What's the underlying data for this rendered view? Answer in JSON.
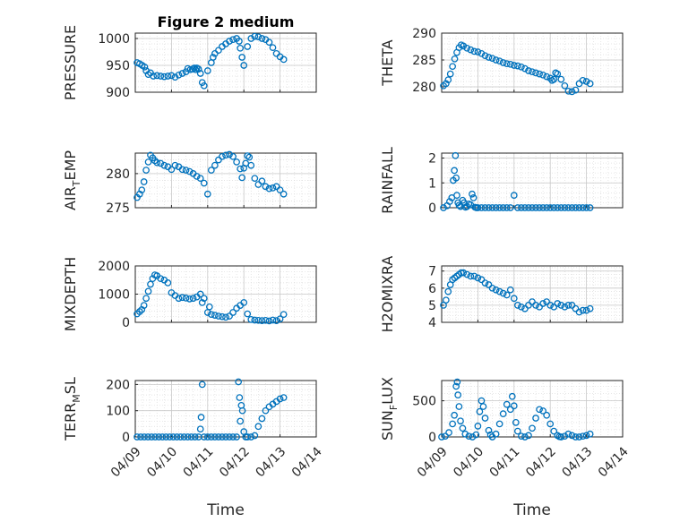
{
  "chart_data": {
    "type": "scatter",
    "title": "Figure 2 medium",
    "x_label": "Time",
    "x_tick_labels": [
      "04/09",
      "04/10",
      "04/11",
      "04/12",
      "04/13",
      "04/14"
    ],
    "xlim": [
      0,
      5
    ],
    "marker_color": "#0072BD",
    "grid": true,
    "minor_grid": true,
    "panels": [
      {
        "id": "pressure",
        "ylabel": "PRESSURE",
        "ylabel_sub": "",
        "ylabel_tail": "",
        "ylim": [
          900,
          1010
        ],
        "yticks": [
          900,
          950,
          1000
        ],
        "ytick_labels": [
          "900",
          "950",
          "1000"
        ],
        "x": [
          0.05,
          0.12,
          0.19,
          0.26,
          0.3,
          0.36,
          0.42,
          0.5,
          0.6,
          0.7,
          0.8,
          0.9,
          1.0,
          1.1,
          1.2,
          1.3,
          1.4,
          1.45,
          1.52,
          1.58,
          1.63,
          1.67,
          1.7,
          1.75,
          1.8,
          1.85,
          1.9,
          2.0,
          2.1,
          2.15,
          2.2,
          2.3,
          2.4,
          2.5,
          2.6,
          2.7,
          2.8,
          2.87,
          2.9,
          2.95,
          3.0,
          3.1,
          3.2,
          3.3,
          3.4,
          3.5,
          3.6,
          3.7,
          3.8,
          3.9,
          4.0,
          4.1
        ],
        "y": [
          955,
          953,
          950,
          947,
          940,
          933,
          936,
          930,
          931,
          930,
          929,
          930,
          931,
          928,
          932,
          935,
          938,
          944,
          942,
          943,
          945,
          942,
          945,
          943,
          935,
          918,
          912,
          940,
          955,
          965,
          972,
          978,
          985,
          990,
          995,
          998,
          1000,
          995,
          982,
          965,
          950,
          985,
          1000,
          1004,
          1003,
          1000,
          998,
          993,
          983,
          972,
          966,
          961
        ]
      },
      {
        "id": "theta",
        "ylabel": "THETA",
        "ylabel_sub": "",
        "ylabel_tail": "",
        "ylim": [
          279,
          290
        ],
        "yticks": [
          280,
          285,
          290
        ],
        "ytick_labels": [
          "280",
          "285",
          "290"
        ],
        "x": [
          0.05,
          0.12,
          0.18,
          0.24,
          0.3,
          0.36,
          0.42,
          0.48,
          0.54,
          0.6,
          0.7,
          0.8,
          0.9,
          1.0,
          1.1,
          1.2,
          1.3,
          1.4,
          1.5,
          1.6,
          1.7,
          1.8,
          1.9,
          2.0,
          2.1,
          2.2,
          2.3,
          2.4,
          2.5,
          2.6,
          2.7,
          2.8,
          2.9,
          3.0,
          3.05,
          3.1,
          3.15,
          3.2,
          3.3,
          3.4,
          3.5,
          3.6,
          3.7,
          3.8,
          3.9,
          4.0,
          4.1
        ],
        "y": [
          280.2,
          280.6,
          281.3,
          282.4,
          283.8,
          285.2,
          286.4,
          287.3,
          287.8,
          287.6,
          287.2,
          286.9,
          286.6,
          286.5,
          286.2,
          285.8,
          285.5,
          285.3,
          285.0,
          284.8,
          284.5,
          284.3,
          284.2,
          284.0,
          283.9,
          283.7,
          283.4,
          283.0,
          282.8,
          282.6,
          282.4,
          282.2,
          281.9,
          281.6,
          281.2,
          281.4,
          282.6,
          282.4,
          281.4,
          280.2,
          279.2,
          279.1,
          279.4,
          280.6,
          281.2,
          281.0,
          280.6
        ]
      },
      {
        "id": "airtemp",
        "ylabel": "AIR",
        "ylabel_sub": "T",
        "ylabel_tail": "EMP",
        "ylim": [
          275,
          283
        ],
        "yticks": [
          275,
          280
        ],
        "ytick_labels": [
          "275",
          "280"
        ],
        "x": [
          0.05,
          0.12,
          0.18,
          0.24,
          0.3,
          0.36,
          0.42,
          0.48,
          0.54,
          0.6,
          0.7,
          0.8,
          0.9,
          1.0,
          1.1,
          1.2,
          1.3,
          1.4,
          1.5,
          1.6,
          1.7,
          1.8,
          1.9,
          2.0,
          2.1,
          2.2,
          2.3,
          2.4,
          2.5,
          2.6,
          2.7,
          2.8,
          2.9,
          2.95,
          3.0,
          3.05,
          3.1,
          3.15,
          3.2,
          3.3,
          3.4,
          3.5,
          3.6,
          3.7,
          3.8,
          3.9,
          4.0,
          4.1
        ],
        "y": [
          276.5,
          277.0,
          277.6,
          278.8,
          280.5,
          281.7,
          282.7,
          282.3,
          281.9,
          281.6,
          281.5,
          281.2,
          281.0,
          280.6,
          281.2,
          281.0,
          280.6,
          280.5,
          280.3,
          280.0,
          279.6,
          279.3,
          278.6,
          277.0,
          280.5,
          281.2,
          282.0,
          282.5,
          282.7,
          282.8,
          282.5,
          281.7,
          280.7,
          279.4,
          280.8,
          281.5,
          282.6,
          282.4,
          281.2,
          279.3,
          278.4,
          278.9,
          278.1,
          277.8,
          277.9,
          278.1,
          277.6,
          277.0
        ]
      },
      {
        "id": "rainfall",
        "ylabel": "RAINFALL",
        "ylabel_sub": "",
        "ylabel_tail": "",
        "ylim": [
          0,
          2.2
        ],
        "yticks": [
          0,
          1,
          2
        ],
        "ytick_labels": [
          "0",
          "1",
          "2"
        ],
        "x": [
          0.05,
          0.15,
          0.22,
          0.28,
          0.32,
          0.35,
          0.38,
          0.4,
          0.42,
          0.45,
          0.48,
          0.52,
          0.58,
          0.62,
          0.66,
          0.7,
          0.75,
          0.8,
          0.84,
          0.88,
          0.92,
          0.96,
          1.0,
          1.1,
          1.2,
          1.3,
          1.4,
          1.5,
          1.6,
          1.7,
          1.8,
          1.9,
          2.0,
          2.1,
          2.2,
          2.3,
          2.4,
          2.5,
          2.6,
          2.7,
          2.8,
          2.9,
          3.0,
          3.1,
          3.2,
          3.3,
          3.4,
          3.5,
          3.6,
          3.7,
          3.8,
          3.9,
          4.0,
          4.1
        ],
        "y": [
          0,
          0.08,
          0.25,
          0.4,
          1.1,
          1.5,
          2.1,
          1.2,
          0.5,
          0.2,
          0.1,
          0.05,
          0.3,
          0.2,
          0.02,
          0.05,
          0.15,
          0.12,
          0.55,
          0.4,
          0.02,
          0,
          0,
          0,
          0,
          0,
          0,
          0,
          0,
          0,
          0,
          0,
          0.5,
          0,
          0,
          0,
          0,
          0,
          0,
          0,
          0,
          0,
          0,
          0,
          0,
          0,
          0,
          0,
          0,
          0,
          0,
          0,
          0,
          0
        ]
      },
      {
        "id": "mixdepth",
        "ylabel": "MIXDEPTH",
        "ylabel_sub": "",
        "ylabel_tail": "",
        "ylim": [
          0,
          2000
        ],
        "yticks": [
          0,
          1000,
          2000
        ],
        "ytick_labels": [
          "0",
          "1000",
          "2000"
        ],
        "x": [
          0.05,
          0.12,
          0.18,
          0.24,
          0.3,
          0.36,
          0.42,
          0.48,
          0.54,
          0.6,
          0.7,
          0.8,
          0.9,
          1.0,
          1.1,
          1.2,
          1.3,
          1.4,
          1.5,
          1.6,
          1.7,
          1.8,
          1.85,
          1.9,
          2.0,
          2.05,
          2.1,
          2.2,
          2.3,
          2.4,
          2.5,
          2.6,
          2.7,
          2.8,
          2.9,
          3.0,
          3.1,
          3.2,
          3.3,
          3.4,
          3.5,
          3.6,
          3.7,
          3.8,
          3.9,
          4.0,
          4.1
        ],
        "y": [
          300,
          380,
          450,
          600,
          850,
          1100,
          1350,
          1550,
          1680,
          1650,
          1550,
          1500,
          1400,
          1050,
          950,
          850,
          880,
          860,
          830,
          850,
          900,
          1000,
          700,
          850,
          350,
          550,
          280,
          250,
          220,
          200,
          180,
          220,
          350,
          500,
          600,
          700,
          300,
          100,
          80,
          70,
          60,
          70,
          50,
          80,
          60,
          120,
          280
        ]
      },
      {
        "id": "h2omixra",
        "ylabel": "H2OMIXRA",
        "ylabel_sub": "",
        "ylabel_tail": "",
        "ylim": [
          4,
          7.3
        ],
        "yticks": [
          4,
          5,
          6,
          7
        ],
        "ytick_labels": [
          "4",
          "5",
          "6",
          "7"
        ],
        "x": [
          0.05,
          0.12,
          0.18,
          0.24,
          0.3,
          0.36,
          0.42,
          0.48,
          0.54,
          0.6,
          0.7,
          0.8,
          0.9,
          1.0,
          1.1,
          1.2,
          1.3,
          1.4,
          1.5,
          1.6,
          1.7,
          1.8,
          1.9,
          2.0,
          2.1,
          2.2,
          2.3,
          2.4,
          2.5,
          2.6,
          2.7,
          2.8,
          2.9,
          3.0,
          3.1,
          3.2,
          3.3,
          3.4,
          3.5,
          3.6,
          3.7,
          3.8,
          3.9,
          4.0,
          4.1
        ],
        "y": [
          5.0,
          5.3,
          5.8,
          6.2,
          6.5,
          6.6,
          6.7,
          6.8,
          6.9,
          6.9,
          6.8,
          6.7,
          6.7,
          6.6,
          6.5,
          6.3,
          6.2,
          6.0,
          5.9,
          5.8,
          5.7,
          5.6,
          5.9,
          5.4,
          5.0,
          4.9,
          4.8,
          5.0,
          5.2,
          5.0,
          4.9,
          5.1,
          5.2,
          5.0,
          4.9,
          5.1,
          5.0,
          4.9,
          5.0,
          5.0,
          4.8,
          4.6,
          4.7,
          4.7,
          4.8
        ]
      },
      {
        "id": "terrmsl",
        "ylabel": "TERR",
        "ylabel_sub": "M",
        "ylabel_tail": "SL",
        "ylim": [
          0,
          215
        ],
        "yticks": [
          0,
          100,
          200
        ],
        "ytick_labels": [
          "0",
          "100",
          "200"
        ],
        "x": [
          0.05,
          0.15,
          0.25,
          0.35,
          0.45,
          0.55,
          0.65,
          0.75,
          0.85,
          0.95,
          1.05,
          1.15,
          1.25,
          1.35,
          1.45,
          1.55,
          1.65,
          1.75,
          1.8,
          1.82,
          1.85,
          1.9,
          2.0,
          2.1,
          2.2,
          2.3,
          2.4,
          2.5,
          2.6,
          2.7,
          2.8,
          2.85,
          2.88,
          2.9,
          2.93,
          2.96,
          3.0,
          3.05,
          3.1,
          3.2,
          3.3,
          3.4,
          3.5,
          3.6,
          3.7,
          3.8,
          3.9,
          4.0,
          4.1
        ],
        "y": [
          0,
          0,
          0,
          0,
          0,
          0,
          0,
          0,
          0,
          0,
          0,
          0,
          0,
          0,
          0,
          0,
          0,
          0,
          30,
          75,
          200,
          0,
          0,
          0,
          0,
          0,
          0,
          0,
          0,
          0,
          0,
          210,
          150,
          60,
          120,
          100,
          20,
          0,
          0,
          0,
          5,
          40,
          70,
          100,
          115,
          125,
          135,
          145,
          150
        ]
      },
      {
        "id": "sunflux",
        "ylabel": "SUN",
        "ylabel_sub": "F",
        "ylabel_tail": "LUX",
        "ylim": [
          0,
          780
        ],
        "yticks": [
          0,
          500
        ],
        "ytick_labels": [
          "0",
          "500"
        ],
        "x": [
          0.0,
          0.1,
          0.2,
          0.3,
          0.35,
          0.4,
          0.43,
          0.45,
          0.48,
          0.52,
          0.58,
          0.65,
          0.75,
          0.85,
          0.95,
          1.0,
          1.05,
          1.1,
          1.15,
          1.2,
          1.3,
          1.35,
          1.4,
          1.5,
          1.6,
          1.7,
          1.8,
          1.9,
          1.95,
          2.0,
          2.05,
          2.1,
          2.2,
          2.3,
          2.4,
          2.5,
          2.6,
          2.7,
          2.8,
          2.9,
          3.0,
          3.1,
          3.2,
          3.25,
          3.3,
          3.4,
          3.5,
          3.6,
          3.7,
          3.8,
          3.9,
          4.0,
          4.1
        ],
        "y": [
          0,
          10,
          60,
          180,
          300,
          700,
          760,
          580,
          420,
          220,
          120,
          40,
          10,
          0,
          30,
          150,
          350,
          500,
          420,
          260,
          90,
          30,
          0,
          40,
          180,
          320,
          450,
          380,
          560,
          430,
          200,
          80,
          10,
          0,
          20,
          120,
          260,
          380,
          360,
          300,
          180,
          80,
          20,
          5,
          0,
          10,
          40,
          20,
          0,
          0,
          10,
          20,
          40
        ]
      }
    ]
  }
}
